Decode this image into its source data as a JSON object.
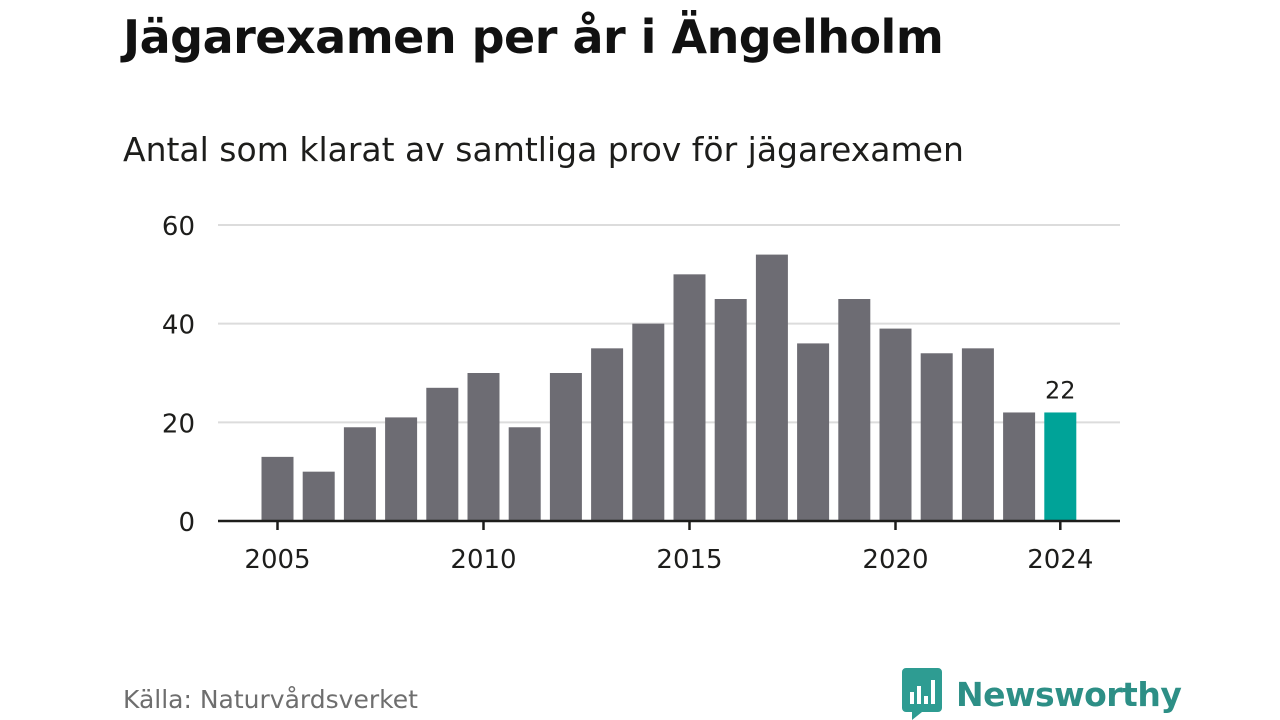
{
  "title": "Jägarexamen per år i Ängelholm",
  "subtitle": "Antal som klarat av samtliga prov för jägarexamen",
  "source": "Källa: Naturvårdsverket",
  "brand": {
    "name": "Newsworthy",
    "icon": "newsworthy-logo-icon",
    "color": "#2e9c92"
  },
  "colors": {
    "bar": "#6d6c73",
    "highlight": "#00a398",
    "grid": "#dcdcdc",
    "axis": "#1d1d1b",
    "text": "#1d1d1b"
  },
  "chart_data": {
    "type": "bar",
    "x": [
      2005,
      2006,
      2007,
      2008,
      2009,
      2010,
      2011,
      2012,
      2013,
      2014,
      2015,
      2016,
      2017,
      2018,
      2019,
      2020,
      2021,
      2022,
      2023,
      2024
    ],
    "values": [
      13,
      10,
      19,
      21,
      27,
      30,
      19,
      30,
      35,
      40,
      50,
      45,
      54,
      36,
      45,
      39,
      34,
      35,
      22,
      22
    ],
    "highlight_index": 19,
    "highlight_label": "22",
    "ylim": [
      0,
      60
    ],
    "yticks": [
      0,
      20,
      40,
      60
    ],
    "xticks": [
      2005,
      2010,
      2015,
      2020,
      2024
    ],
    "grid": true,
    "legend": "none"
  }
}
